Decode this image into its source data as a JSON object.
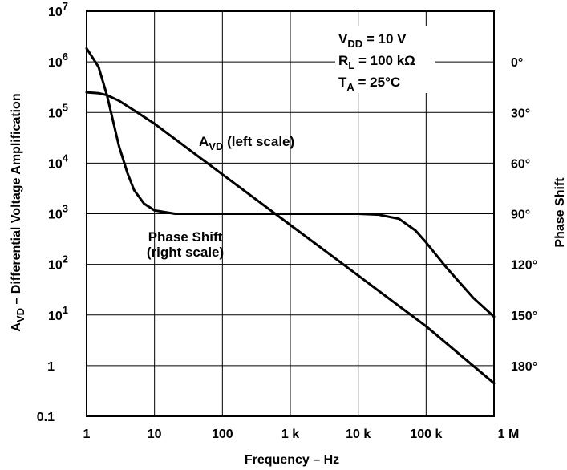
{
  "chart_data": {
    "type": "line",
    "xlabel": "Frequency – Hz",
    "x_scale": "log",
    "xlim": [
      1,
      1000000
    ],
    "x_ticks": [
      {
        "value": 1,
        "label": "1"
      },
      {
        "value": 10,
        "label": "10"
      },
      {
        "value": 100,
        "label": "100"
      },
      {
        "value": 1000,
        "label": "1 k"
      },
      {
        "value": 10000,
        "label": "10 k"
      },
      {
        "value": 100000,
        "label": "100 k"
      },
      {
        "value": 1000000,
        "label": "1 M"
      }
    ],
    "ylabel_left": {
      "main": "A",
      "sub": "VD",
      "rest": " – Differential Voltage Amplification"
    },
    "y_scale_left": "log",
    "ylim_left": [
      0.1,
      10000000
    ],
    "y_ticks_left": [
      {
        "value": 0.1,
        "base": "0.1",
        "exp": ""
      },
      {
        "value": 1,
        "base": "1",
        "exp": ""
      },
      {
        "value": 10,
        "base": "10",
        "exp": "1"
      },
      {
        "value": 100,
        "base": "10",
        "exp": "2"
      },
      {
        "value": 1000,
        "base": "10",
        "exp": "3"
      },
      {
        "value": 10000,
        "base": "10",
        "exp": "4"
      },
      {
        "value": 100000,
        "base": "10",
        "exp": "5"
      },
      {
        "value": 1000000,
        "base": "10",
        "exp": "6"
      },
      {
        "value": 10000000,
        "base": "10",
        "exp": "7"
      }
    ],
    "ylabel_right": "Phase Shift",
    "y_ticks_right": [
      {
        "value": 0,
        "label": "0°"
      },
      {
        "value": 30,
        "label": "30°"
      },
      {
        "value": 60,
        "label": "60°"
      },
      {
        "value": 90,
        "label": "90°"
      },
      {
        "value": 120,
        "label": "120°"
      },
      {
        "value": 150,
        "label": "150°"
      },
      {
        "value": 180,
        "label": "180°"
      }
    ],
    "grid": true,
    "series": [
      {
        "name": "AVD (left scale)",
        "axis": "left",
        "points": [
          [
            1,
            250000
          ],
          [
            1.5,
            240000
          ],
          [
            2,
            220000
          ],
          [
            3,
            170000
          ],
          [
            5,
            110000
          ],
          [
            10,
            60000
          ],
          [
            20,
            30000
          ],
          [
            50,
            12000
          ],
          [
            100,
            6000
          ],
          [
            1000,
            600
          ],
          [
            10000,
            60
          ],
          [
            100000,
            6
          ],
          [
            1000000,
            0.45
          ]
        ]
      },
      {
        "name": "Phase Shift (right scale)",
        "axis": "right",
        "points": [
          [
            1,
            -8
          ],
          [
            1.5,
            3
          ],
          [
            2,
            20
          ],
          [
            3,
            50
          ],
          [
            4,
            66
          ],
          [
            5,
            76
          ],
          [
            7,
            84
          ],
          [
            10,
            88
          ],
          [
            20,
            90
          ],
          [
            100,
            90
          ],
          [
            1000,
            90
          ],
          [
            10000,
            90
          ],
          [
            20000,
            90.5
          ],
          [
            40000,
            93
          ],
          [
            70000,
            100
          ],
          [
            100000,
            107
          ],
          [
            200000,
            122
          ],
          [
            500000,
            140
          ],
          [
            1000000,
            151
          ]
        ]
      }
    ]
  },
  "annotations": {
    "conditions": [
      {
        "main": "V",
        "sub": "DD",
        "rest": " = 10 V"
      },
      {
        "main": "R",
        "sub": "L",
        "rest": " = 100 kΩ"
      },
      {
        "main": "T",
        "sub": "A",
        "rest": " = 25°C"
      }
    ],
    "avd_label": {
      "main": "A",
      "sub": "VD",
      "rest": " (left scale)"
    },
    "phase_label": [
      "Phase Shift",
      "(right scale)"
    ]
  }
}
